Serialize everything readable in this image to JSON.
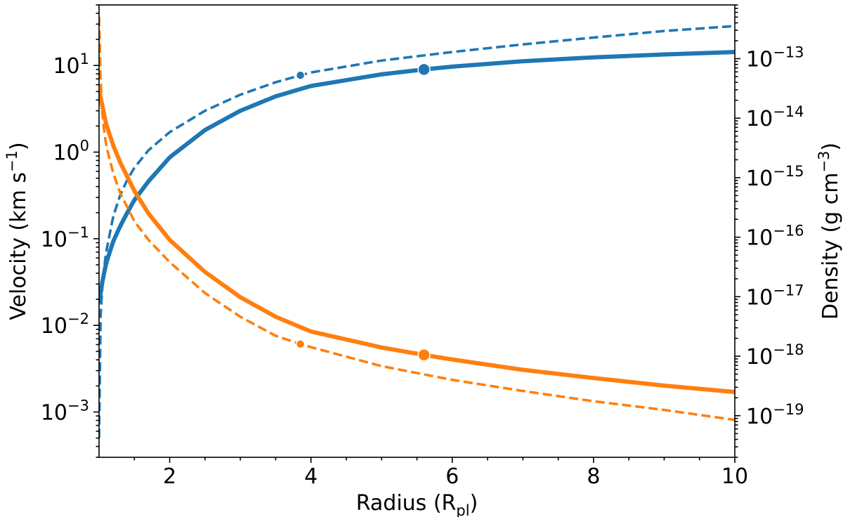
{
  "chart_data": {
    "type": "line",
    "xlabel": {
      "main": "Radius (R",
      "sub": "pl",
      "close": ")"
    },
    "ylabel_left": {
      "main": "Velocity (km s",
      "sup": "−1",
      "close": ")"
    },
    "ylabel_right": {
      "main": "Density (g cm",
      "sup": "−3",
      "close": ")"
    },
    "xlim": [
      1,
      10
    ],
    "ylim_left": [
      0.0003,
      50
    ],
    "ylim_right": [
      2e-20,
      8e-13
    ],
    "yscale_left": "log",
    "yscale_right": "log",
    "grid": false,
    "legend": "none",
    "x_ticks": [
      {
        "value": 2,
        "label": "2"
      },
      {
        "value": 4,
        "label": "4"
      },
      {
        "value": 6,
        "label": "6"
      },
      {
        "value": 8,
        "label": "8"
      },
      {
        "value": 10,
        "label": "10"
      }
    ],
    "y_left_ticks": [
      {
        "value": 10,
        "base": "10",
        "exp": "1"
      },
      {
        "value": 1,
        "base": "10",
        "exp": "0"
      },
      {
        "value": 0.1,
        "base": "10",
        "exp": "−1"
      },
      {
        "value": 0.01,
        "base": "10",
        "exp": "−2"
      },
      {
        "value": 0.001,
        "base": "10",
        "exp": "−3"
      }
    ],
    "y_right_ticks": [
      {
        "value": 1e-13,
        "base": "10",
        "exp": "−13"
      },
      {
        "value": 1e-14,
        "base": "10",
        "exp": "−14"
      },
      {
        "value": 1e-15,
        "base": "10",
        "exp": "−15"
      },
      {
        "value": 1e-16,
        "base": "10",
        "exp": "−16"
      },
      {
        "value": 1e-17,
        "base": "10",
        "exp": "−17"
      },
      {
        "value": 1e-18,
        "base": "10",
        "exp": "−18"
      },
      {
        "value": 1e-19,
        "base": "10",
        "exp": "−19"
      }
    ],
    "colors": {
      "velocity": "#1f77b4",
      "density": "#ff7f0e"
    },
    "series": [
      {
        "quantity": "velocity",
        "axis": "left",
        "style": "solid",
        "x": [
          1.0,
          1.05,
          1.1,
          1.2,
          1.3,
          1.4,
          1.5,
          1.7,
          2.0,
          2.5,
          3.0,
          3.5,
          4.0,
          5.0,
          5.6,
          6.0,
          7.0,
          8.0,
          9.0,
          10.0
        ],
        "y": [
          0.018,
          0.033,
          0.052,
          0.093,
          0.14,
          0.2,
          0.28,
          0.46,
          0.87,
          1.8,
          3.0,
          4.4,
          5.8,
          7.9,
          9.0,
          9.7,
          11.2,
          12.4,
          13.4,
          14.3
        ],
        "marker": {
          "x": 5.6,
          "y": 9.0,
          "size": "large"
        }
      },
      {
        "quantity": "velocity",
        "axis": "left",
        "style": "dashed",
        "x": [
          1.0,
          1.02,
          1.05,
          1.1,
          1.2,
          1.3,
          1.4,
          1.5,
          1.7,
          2.0,
          2.5,
          3.0,
          3.5,
          3.85,
          4.0,
          5.0,
          6.0,
          7.0,
          8.0,
          9.0,
          10.0
        ],
        "y": [
          0.0005,
          0.012,
          0.032,
          0.07,
          0.18,
          0.32,
          0.48,
          0.66,
          1.05,
          1.7,
          3.0,
          4.6,
          6.4,
          7.7,
          8.3,
          11.4,
          14.3,
          17.5,
          21.0,
          25.0,
          28.5
        ],
        "marker": {
          "x": 3.85,
          "y": 7.7,
          "size": "small"
        }
      },
      {
        "quantity": "density",
        "axis": "right",
        "style": "solid",
        "x": [
          1.0,
          1.1,
          1.2,
          1.3,
          1.5,
          1.7,
          2.0,
          2.5,
          3.0,
          3.5,
          4.0,
          5.0,
          5.6,
          6.0,
          7.0,
          8.0,
          9.0,
          10.0
        ],
        "y": [
          3e-14,
          8e-15,
          3.5e-15,
          1.8e-15,
          6e-16,
          2.5e-16,
          9e-17,
          2.6e-17,
          9.8e-18,
          4.6e-18,
          2.6e-18,
          1.4e-18,
          1.05e-18,
          8.8e-19,
          5.9e-19,
          4.3e-19,
          3.2e-19,
          2.5e-19
        ],
        "marker": {
          "x": 5.6,
          "y": 1.05e-18,
          "size": "large"
        }
      },
      {
        "quantity": "density",
        "axis": "right",
        "style": "dashed",
        "x": [
          1.0,
          1.03,
          1.06,
          1.1,
          1.2,
          1.3,
          1.5,
          1.7,
          2.0,
          2.5,
          3.0,
          3.5,
          3.85,
          4.0,
          5.0,
          6.0,
          7.0,
          8.0,
          9.0,
          10.0
        ],
        "y": [
          5e-13,
          2e-14,
          8e-15,
          3.5e-15,
          1.2e-15,
          5.5e-16,
          1.85e-16,
          9e-17,
          3.8e-17,
          1.15e-17,
          4.6e-18,
          2.2e-18,
          1.6e-18,
          1.42e-18,
          6.8e-19,
          4e-19,
          2.6e-19,
          1.75e-19,
          1.25e-19,
          8.5e-20
        ],
        "marker": {
          "x": 3.85,
          "y": 1.6e-18,
          "size": "small"
        }
      }
    ]
  }
}
